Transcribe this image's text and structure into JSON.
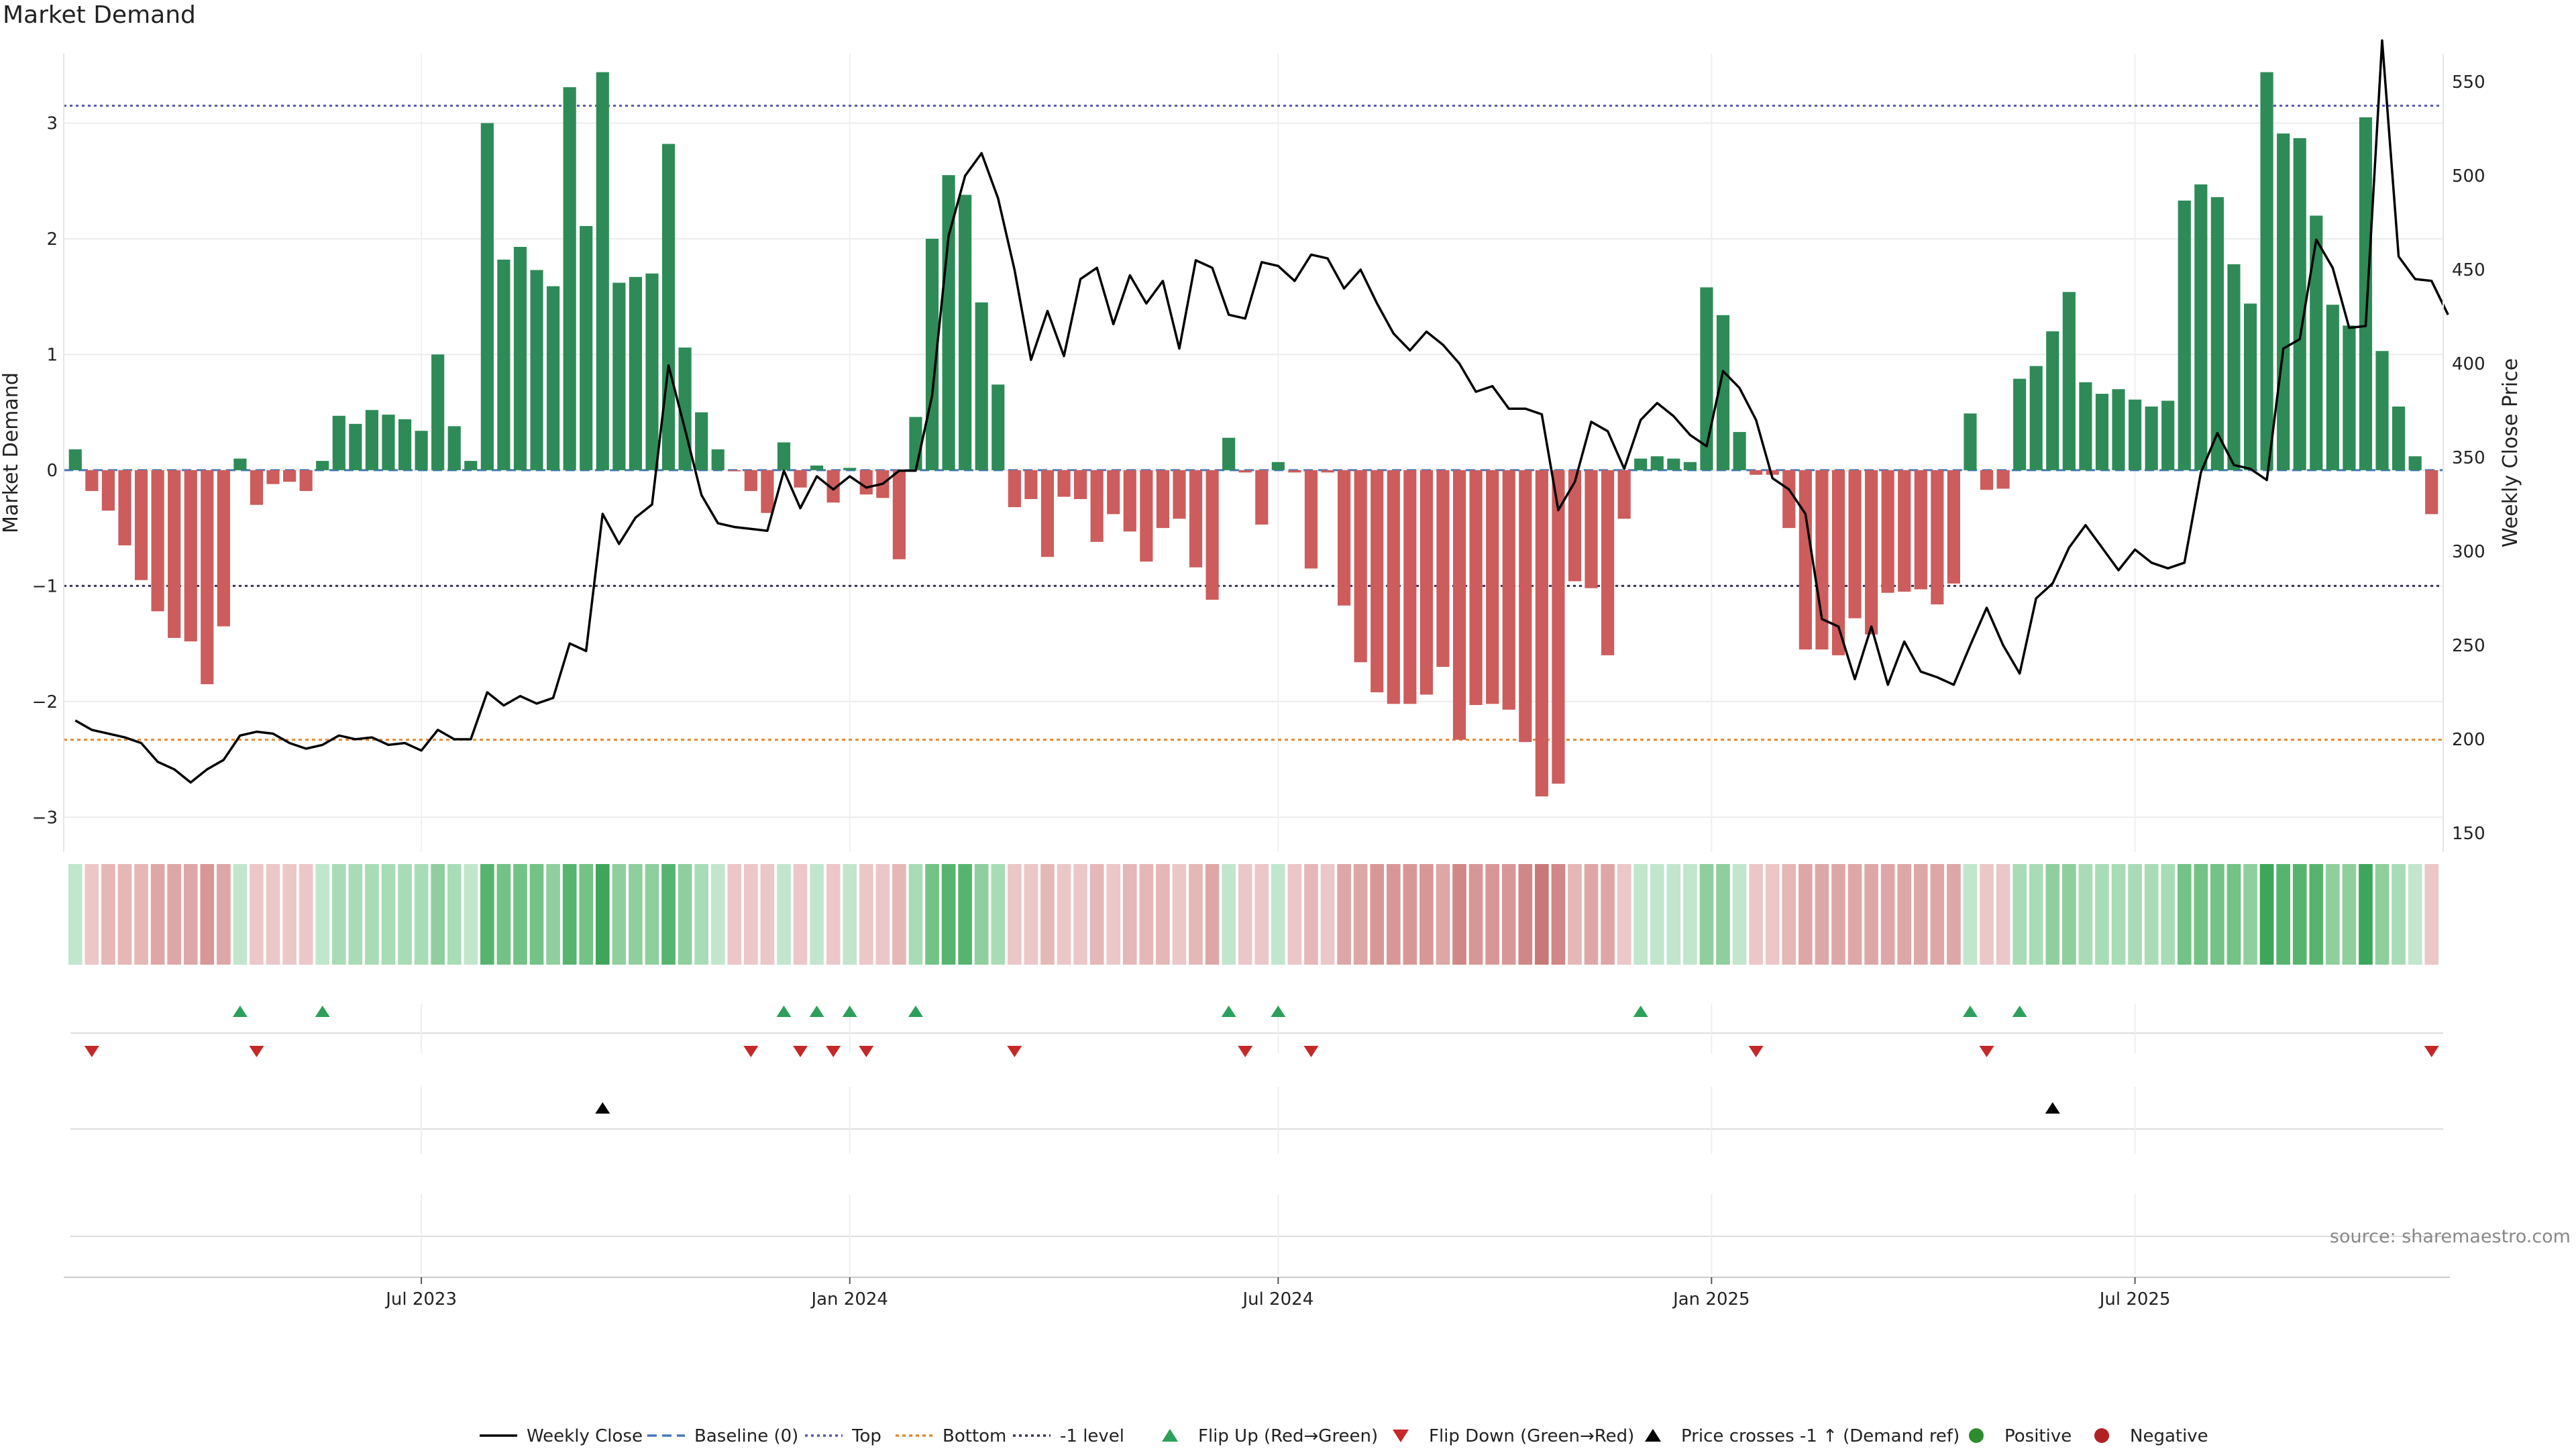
{
  "title": "Market Demand",
  "source": "source: sharemaestro.com",
  "chart_data": {
    "type": "bar",
    "title": "Market Demand",
    "ylabel_left": "Market Demand",
    "ylabel_right": "Weekly Close Price",
    "ylim_left": [
      -3.3,
      3.6
    ],
    "ylim_right": [
      140,
      565
    ],
    "yticks_left": [
      "−3",
      "−2",
      "−1",
      "0",
      "1",
      "2",
      "3"
    ],
    "yticks_left_values": [
      -3,
      -2,
      -1,
      0,
      1,
      2,
      3
    ],
    "yticks_right": [
      "150",
      "200",
      "250",
      "300",
      "350",
      "400",
      "450",
      "500",
      "550"
    ],
    "yticks_right_values": [
      150,
      200,
      250,
      300,
      350,
      400,
      450,
      500,
      550
    ],
    "xticks": [
      {
        "label": "Jul 2023",
        "index": 21
      },
      {
        "label": "Jan 2024",
        "index": 47
      },
      {
        "label": "Jul 2024",
        "index": 73
      },
      {
        "label": "Jan 2025",
        "index": 99.3
      },
      {
        "label": "Jul 2025",
        "index": 125
      }
    ],
    "grid": true,
    "legend_position": "bottom",
    "levels": {
      "top": 3.15,
      "bottom": -2.33,
      "minus_one": -1,
      "baseline": 0
    },
    "colors": {
      "positive": "#2e8b57",
      "negative": "#cd5c5c",
      "close": "#000000",
      "top": "#5555aa",
      "bottom": "#e08a2e",
      "minus_one": "#333355",
      "baseline": "#4477bb",
      "flip_up": "#2ca05a",
      "flip_down": "#c62828",
      "cross": "#000000",
      "pos_dot": "#2e8b2e",
      "neg_dot": "#b22222"
    },
    "demand": [
      0.18,
      -0.18,
      -0.35,
      -0.65,
      -0.95,
      -1.22,
      -1.45,
      -1.48,
      -1.85,
      -1.35,
      0.1,
      -0.3,
      -0.12,
      -0.1,
      -0.18,
      0.08,
      0.47,
      0.4,
      0.52,
      0.48,
      0.44,
      0.34,
      1.0,
      0.38,
      0.08,
      3.0,
      1.82,
      1.93,
      1.73,
      1.59,
      3.31,
      2.11,
      3.44,
      1.62,
      1.67,
      1.7,
      2.82,
      1.06,
      0.5,
      0.18,
      -0.01,
      -0.18,
      -0.37,
      0.24,
      -0.15,
      0.04,
      -0.28,
      0.02,
      -0.21,
      -0.24,
      -0.77,
      0.46,
      2.0,
      2.55,
      2.38,
      1.45,
      0.74,
      -0.32,
      -0.25,
      -0.75,
      -0.23,
      -0.25,
      -0.62,
      -0.38,
      -0.53,
      -0.79,
      -0.5,
      -0.42,
      -0.84,
      -1.12,
      0.28,
      -0.02,
      -0.47,
      0.07,
      -0.02,
      -0.85,
      -0.02,
      -1.17,
      -1.66,
      -1.92,
      -2.02,
      -2.02,
      -1.94,
      -1.7,
      -2.33,
      -2.03,
      -2.02,
      -2.07,
      -2.35,
      -2.82,
      -2.71,
      -0.96,
      -1.02,
      -1.6,
      -0.42,
      0.1,
      0.12,
      0.1,
      0.07,
      1.58,
      1.34,
      0.33,
      -0.04,
      -0.04,
      -0.5,
      -1.55,
      -1.55,
      -1.6,
      -1.28,
      -1.42,
      -1.06,
      -1.05,
      -1.03,
      -1.16,
      -0.98,
      0.49,
      -0.17,
      -0.16,
      0.79,
      0.9,
      1.2,
      1.54,
      0.76,
      0.66,
      0.7,
      0.61,
      0.55,
      0.6,
      2.33,
      2.47,
      2.36,
      1.78,
      1.44,
      3.44,
      2.91,
      2.87,
      2.2,
      1.43,
      1.25,
      3.05,
      1.03,
      0.55,
      0.12,
      -0.38
    ],
    "close": [
      210,
      205,
      203,
      201,
      198,
      188,
      184,
      177,
      184,
      189,
      202,
      204,
      203,
      198,
      195,
      197,
      202,
      200,
      201,
      197,
      198,
      194,
      205,
      200,
      200,
      225,
      218,
      223,
      219,
      222,
      251,
      247,
      320,
      304,
      318,
      325,
      399,
      365,
      330,
      315,
      313,
      312,
      311,
      343,
      323,
      340,
      333,
      340,
      334,
      336,
      343,
      343,
      383,
      468,
      500,
      512,
      488,
      450,
      402,
      428,
      404,
      445,
      451,
      421,
      447,
      432,
      444,
      408,
      455,
      451,
      426,
      424,
      454,
      452,
      444,
      458,
      456,
      440,
      450,
      432,
      416,
      407,
      417,
      410,
      400,
      385,
      388,
      376,
      376,
      373,
      322,
      337,
      369,
      364,
      344,
      370,
      379,
      372,
      362,
      356,
      396,
      387,
      370,
      339,
      333,
      320,
      264,
      260,
      232,
      260,
      229,
      252,
      236,
      233,
      229,
      250,
      270,
      250,
      235,
      275,
      283,
      302,
      314,
      302,
      290,
      301,
      294,
      291,
      294,
      342,
      363,
      346,
      344,
      338,
      408,
      413,
      466,
      451,
      419,
      420,
      572,
      457,
      445,
      444,
      426
    ],
    "shade": [
      1,
      1,
      2,
      2,
      2,
      3,
      3,
      3,
      4,
      3,
      1,
      1,
      1,
      1,
      1,
      1,
      2,
      2,
      2,
      2,
      2,
      2,
      3,
      2,
      1,
      5,
      4,
      4,
      4,
      3,
      5,
      4,
      6,
      3,
      3,
      3,
      5,
      3,
      2,
      1,
      1,
      1,
      1,
      1,
      1,
      1,
      1,
      1,
      1,
      1,
      2,
      2,
      4,
      5,
      5,
      3,
      2,
      1,
      1,
      2,
      1,
      1,
      2,
      1,
      2,
      2,
      2,
      1,
      2,
      3,
      1,
      1,
      1,
      1,
      1,
      2,
      1,
      3,
      3,
      4,
      4,
      4,
      4,
      3,
      5,
      4,
      4,
      4,
      5,
      6,
      5,
      2,
      3,
      3,
      1,
      1,
      1,
      1,
      1,
      3,
      3,
      1,
      1,
      1,
      2,
      3,
      3,
      3,
      3,
      3,
      3,
      3,
      3,
      3,
      3,
      1,
      1,
      1,
      2,
      2,
      3,
      3,
      2,
      2,
      2,
      2,
      2,
      2,
      4,
      4,
      4,
      4,
      3,
      6,
      5,
      5,
      5,
      3,
      3,
      6,
      3,
      2,
      1,
      1
    ],
    "flip_up": [
      10,
      15,
      43,
      45,
      47,
      51,
      70,
      73,
      95,
      115,
      118
    ],
    "flip_down": [
      1,
      11,
      41,
      44,
      46,
      48,
      57,
      71,
      75,
      102,
      116,
      143
    ],
    "price_crosses_up": [
      32,
      120
    ],
    "legend": [
      "Weekly Close",
      "Baseline (0)",
      "Top",
      "Bottom",
      "-1 level",
      "Flip Up (Red→Green)",
      "Flip Down (Green→Red)",
      "Price crosses -1 ↑ (Demand ref)",
      "Positive",
      "Negative"
    ]
  }
}
